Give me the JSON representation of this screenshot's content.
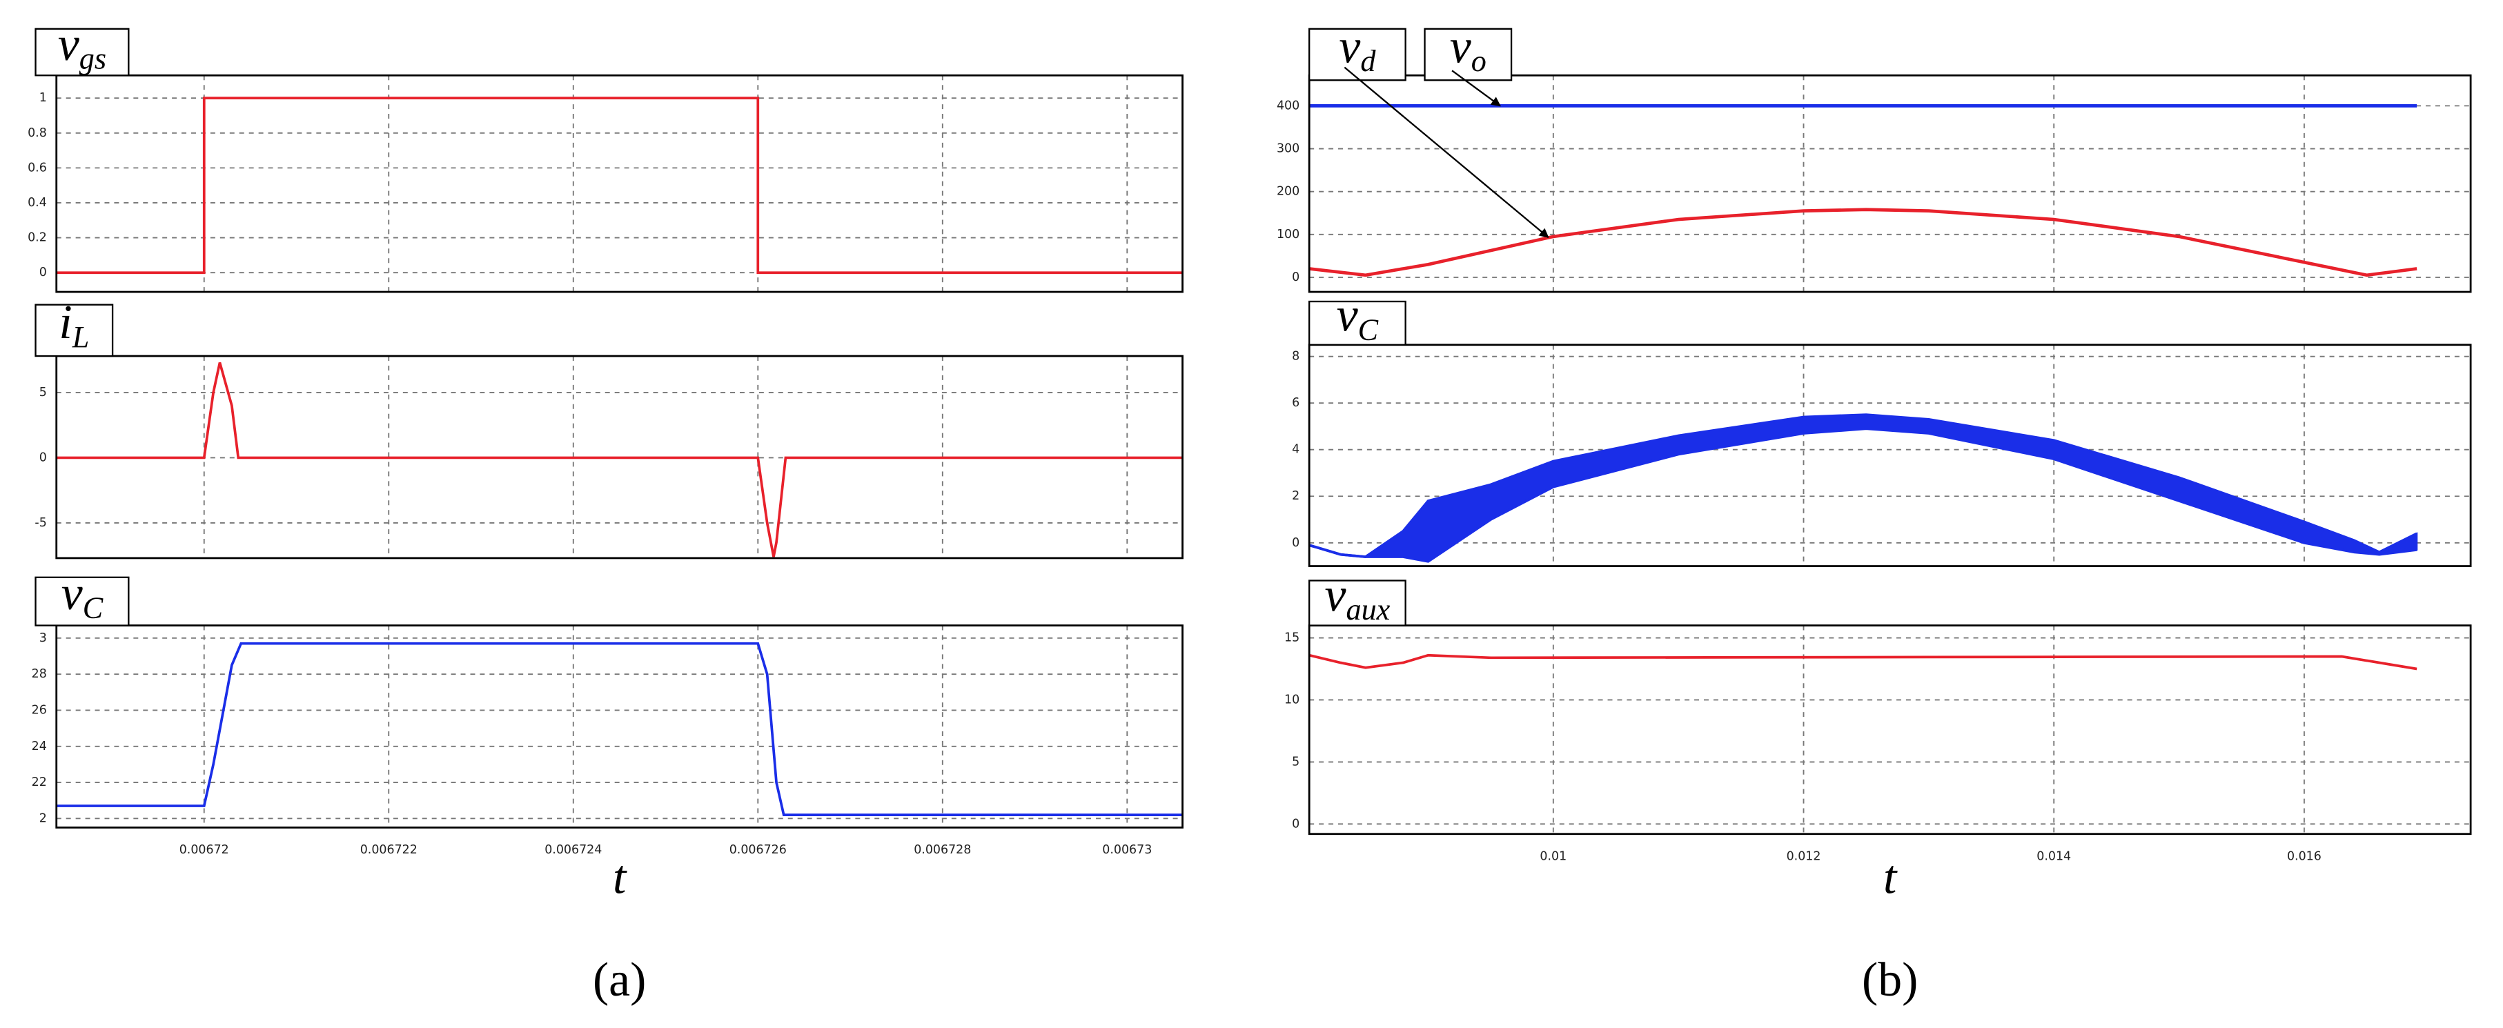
{
  "chart_data": [
    {
      "type": "line",
      "title": "v",
      "title_sub": "gs",
      "x": [
        0.0067184,
        0.00672,
        0.00672,
        0.006726,
        0.006726,
        0.0067306
      ],
      "values": [
        0,
        0,
        1,
        1,
        0,
        0
      ],
      "color": "#e8212b",
      "xlim": [
        0.0067184,
        0.0067306
      ],
      "xticks": [
        0.00672,
        0.006722,
        0.006724,
        0.006726,
        0.006728,
        0.00673
      ],
      "ylim": [
        -0.11,
        1.13
      ],
      "yticks": [
        0,
        0.2,
        0.4,
        0.6,
        0.8,
        1
      ],
      "grid": true
    },
    {
      "type": "line",
      "title": "i",
      "title_sub": "L",
      "x": [
        0.0067184,
        0.00672,
        0.0067201,
        0.00672017,
        0.0067203,
        0.00672037,
        0.006726,
        0.0067261,
        0.00672617,
        0.0067262,
        0.0067263,
        0.0067306
      ],
      "values": [
        0,
        0,
        5,
        7.3,
        4,
        0,
        0,
        -5,
        -7.6,
        -6.5,
        0,
        0
      ],
      "color": "#e8212b",
      "xlim": [
        0.0067184,
        0.0067306
      ],
      "xticks": [
        0.00672,
        0.006722,
        0.006724,
        0.006726,
        0.006728,
        0.00673
      ],
      "ylim": [
        -7.7,
        7.8
      ],
      "yticks": [
        -5,
        0,
        5
      ],
      "grid": true
    },
    {
      "type": "line",
      "title": "v",
      "title_sub": "C",
      "x": [
        0.0067184,
        0.00672,
        0.0067201,
        0.0067203,
        0.0067204,
        0.006726,
        0.0067261,
        0.0067262,
        0.00672628,
        0.0067306
      ],
      "values": [
        2.07,
        2.07,
        2.3,
        2.85,
        2.97,
        2.97,
        2.8,
        2.2,
        2.02,
        2.02
      ],
      "color": "#1a2ee8",
      "xlim": [
        0.0067184,
        0.0067306
      ],
      "xticks": [
        0.00672,
        0.006722,
        0.006724,
        0.006726,
        0.006728,
        0.00673
      ],
      "ylim": [
        1.95,
        3.07
      ],
      "yticks": [
        2,
        {
          "value": 2.2,
          "label": "22"
        },
        {
          "value": 2.4,
          "label": "24"
        },
        {
          "value": 2.6,
          "label": "26"
        },
        {
          "value": 2.8,
          "label": "28"
        },
        3
      ],
      "grid": true,
      "xlabel": "t",
      "caption": "(a)"
    },
    {
      "type": "line",
      "x": [
        0.00805,
        0.0085,
        0.009,
        0.01,
        0.011,
        0.012,
        0.0125,
        0.013,
        0.014,
        0.015,
        0.016,
        0.0165,
        0.0169
      ],
      "series": [
        {
          "name": "v",
          "name_sub": "d",
          "color": "#e8212b",
          "values": [
            20,
            5,
            30,
            95,
            135,
            155,
            158,
            155,
            135,
            95,
            35,
            5,
            20
          ]
        },
        {
          "name": "v",
          "name_sub": "o",
          "color": "#1a2ee8",
          "values": [
            400,
            400,
            400,
            400,
            400,
            400,
            400,
            400,
            400,
            400,
            400,
            400,
            400
          ]
        }
      ],
      "xlim": [
        0.00805,
        0.01733
      ],
      "xticks": [
        0.01,
        0.012,
        0.014,
        0.016
      ],
      "ylim": [
        -34,
        471
      ],
      "yticks": [
        0,
        100,
        200,
        300,
        400
      ],
      "grid": true
    },
    {
      "type": "band",
      "title": "v",
      "title_sub": "C",
      "x": [
        0.00805,
        0.0083,
        0.0085,
        0.0088,
        0.009,
        0.0095,
        0.01,
        0.011,
        0.012,
        0.0125,
        0.013,
        0.014,
        0.015,
        0.016,
        0.0164,
        0.0166,
        0.0169
      ],
      "upper": [
        -0.1,
        -0.5,
        -0.6,
        0.5,
        1.8,
        2.5,
        3.5,
        4.6,
        5.4,
        5.5,
        5.3,
        4.4,
        2.8,
        0.9,
        0.1,
        -0.4,
        0.4
      ],
      "lower": [
        -0.1,
        -0.5,
        -0.6,
        -0.6,
        -0.8,
        1.0,
        2.4,
        3.8,
        4.7,
        4.9,
        4.7,
        3.6,
        1.8,
        0.0,
        -0.4,
        -0.5,
        -0.3
      ],
      "color": "#1a2ee8",
      "xlim": [
        0.00805,
        0.01733
      ],
      "xticks": [
        0.01,
        0.012,
        0.014,
        0.016
      ],
      "ylim": [
        -1,
        8.5
      ],
      "yticks": [
        0,
        2,
        4,
        6,
        8
      ],
      "grid": true
    },
    {
      "type": "line",
      "title": "v",
      "title_sub": "aux",
      "x": [
        0.00805,
        0.0083,
        0.0085,
        0.0088,
        0.009,
        0.0095,
        0.0163,
        0.0166,
        0.0169
      ],
      "values": [
        13.6,
        13.0,
        12.6,
        13.0,
        13.6,
        13.4,
        13.5,
        13.0,
        12.5
      ],
      "color": "#e8212b",
      "xlim": [
        0.00805,
        0.01733
      ],
      "xticks": [
        0.01,
        0.012,
        0.014,
        0.016
      ],
      "ylim": [
        -0.8,
        16
      ],
      "yticks": [
        0,
        5,
        10,
        15
      ],
      "grid": true,
      "xlabel": "t",
      "caption": "(b)"
    }
  ]
}
